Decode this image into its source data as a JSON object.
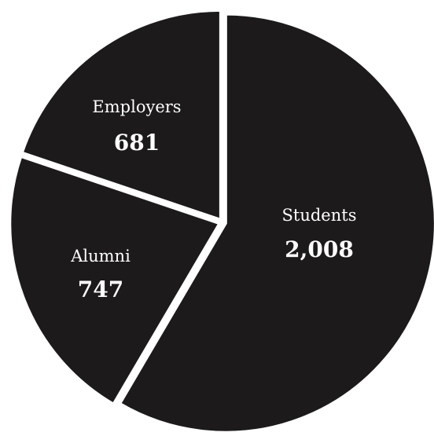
{
  "chart_data": {
    "type": "pie",
    "title": "",
    "slice_color": "#1c1a1b",
    "separator_color": "#ffffff",
    "label_color": "#ffffff",
    "start": "12 o'clock, clockwise",
    "slices": [
      {
        "label": "Students",
        "value": 2008,
        "value_label": "2,008"
      },
      {
        "label": "Alumni",
        "value": 747,
        "value_label": "747"
      },
      {
        "label": "Employers",
        "value": 681,
        "value_label": "681"
      }
    ]
  }
}
